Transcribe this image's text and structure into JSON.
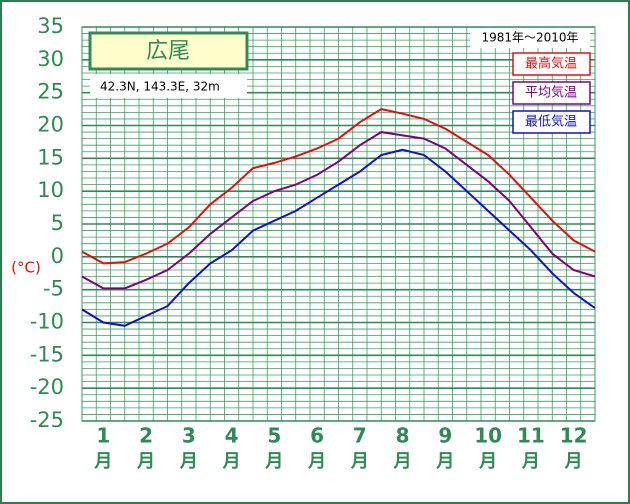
{
  "chart_data": {
    "type": "line",
    "title": "広尾",
    "subtitle": "42.3N, 143.3E, 32m",
    "period": "1981年〜2010年",
    "y_label": "(°C)",
    "x_unit": "月",
    "categories": [
      null,
      "1",
      null,
      "2",
      null,
      "3",
      null,
      "4",
      null,
      "5",
      null,
      "6",
      null,
      "7",
      null,
      "8",
      null,
      "9",
      null,
      "10",
      null,
      "11",
      null,
      "12",
      null
    ],
    "series": [
      {
        "name": "最高気温",
        "color": "#e01010",
        "values": [
          0.8,
          -1.0,
          -0.8,
          0.5,
          2,
          4.5,
          8,
          10.5,
          13.5,
          14.3,
          15.3,
          16.5,
          18,
          20.5,
          22.5,
          21.8,
          21,
          19.5,
          17.5,
          15.5,
          12.5,
          9,
          5.5,
          2.5,
          0.8
        ]
      },
      {
        "name": "平均気温",
        "color": "#800080",
        "values": [
          -3,
          -4.8,
          -4.8,
          -3.5,
          -2,
          0.5,
          3.5,
          6,
          8.5,
          10,
          11,
          12.5,
          14.5,
          17,
          19,
          18.5,
          18,
          16.5,
          14,
          11.5,
          8.5,
          4.5,
          0.5,
          -2,
          -3
        ]
      },
      {
        "name": "最低気温",
        "color": "#1010d0",
        "values": [
          -8,
          -10,
          -10.5,
          -9,
          -7.5,
          -4,
          -1,
          1,
          4,
          5.5,
          7,
          9,
          11,
          13,
          15.5,
          16.3,
          15.5,
          13,
          10,
          7,
          4,
          1,
          -2.5,
          -5.5,
          -7.8
        ]
      }
    ],
    "ylim": [
      -25,
      35
    ],
    "yticks": [
      -25,
      -20,
      -15,
      -10,
      -5,
      0,
      5,
      10,
      15,
      20,
      25,
      30,
      35
    ],
    "grid": true
  }
}
